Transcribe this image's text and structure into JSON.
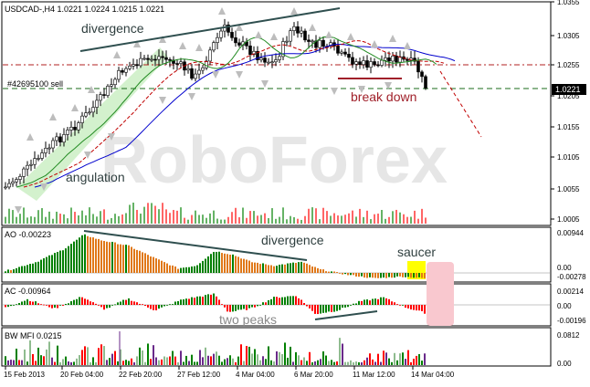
{
  "main": {
    "header": "USDCAD-,H4  1.0221 1.0224 1.0215 1.0221",
    "order_label": "#42695100 sell",
    "price_axis": [
      "1.0355",
      "1.0305",
      "1.0255",
      "1.0205",
      "1.0155",
      "1.0105",
      "1.0055",
      "1.0005"
    ],
    "current_price": "1.0221",
    "annotations": {
      "divergence": "divergence",
      "angulation": "angulation",
      "break_down": "break down"
    },
    "watermark": "RoboForex"
  },
  "ao": {
    "header": "AO -0.00223",
    "axis": [
      "0.00944",
      "0.00",
      "-0.00278"
    ],
    "annotations": {
      "divergence": "divergence",
      "saucer": "saucer"
    }
  },
  "ac": {
    "header": "AC -0.00964",
    "axis": [
      "0.00214",
      "0.00",
      "-0.00196"
    ],
    "annotations": {
      "two_peaks": "two peaks"
    }
  },
  "mfi": {
    "header": "BW MFI 0.0215",
    "axis": [
      "0.0812",
      "0.00"
    ]
  },
  "time_axis": [
    "15 Feb 2013",
    "20 Feb 04:00",
    "22 Feb 20:00",
    "27 Feb 12:00",
    "4 Mar 04:00",
    "6 Mar 20:00",
    "11 Mar 12:00",
    "14 Mar 04:00"
  ],
  "colors": {
    "bull": "#008000",
    "bear": "#ff0000",
    "ao_bear": "#e07818",
    "saucer": "#ffff00",
    "forecast_box": "#f9c8cf",
    "trendline": "#2f4f4f",
    "alligator_jaw": "#0000cd",
    "alligator_teeth": "#c00000",
    "alligator_lips": "#228b22",
    "annotation": "#a0202a"
  }
}
